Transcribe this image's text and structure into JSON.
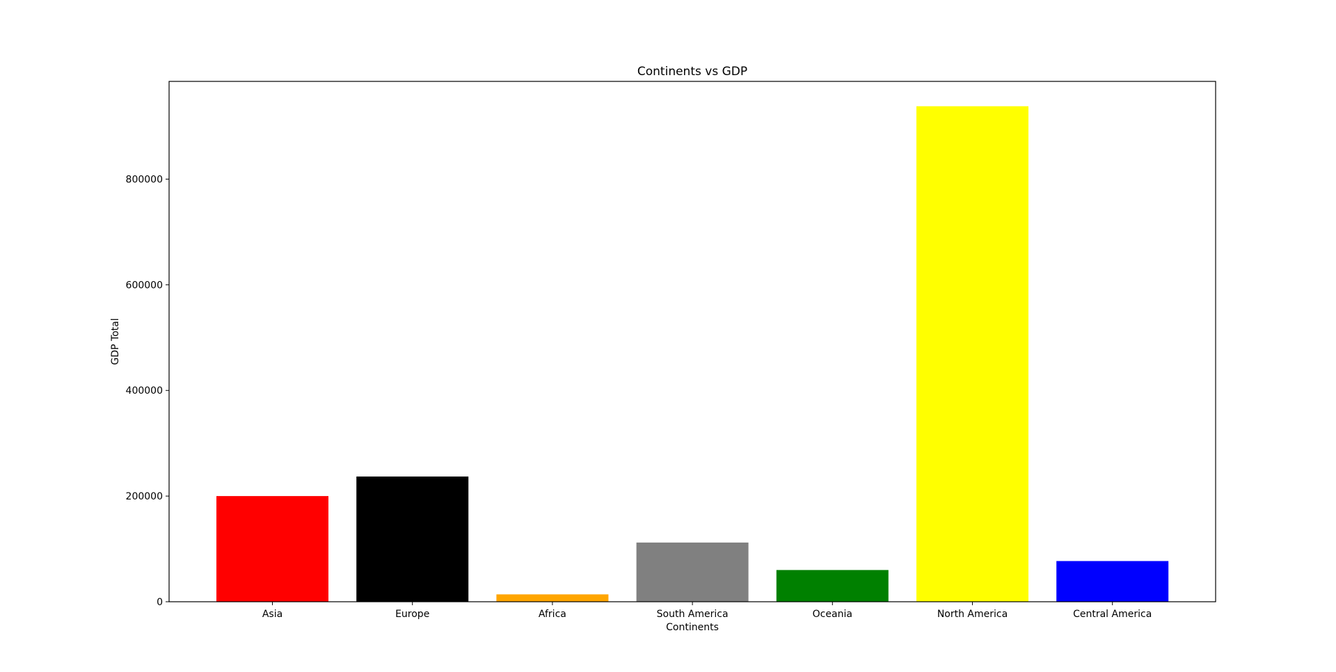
{
  "chart_data": {
    "type": "bar",
    "title": "Continents vs GDP",
    "xlabel": "Continents",
    "ylabel": "GDP Total",
    "categories": [
      "Asia",
      "Europe",
      "Africa",
      "South America",
      "Oceania",
      "North America",
      "Central America"
    ],
    "values": [
      200000,
      237000,
      14000,
      112000,
      60000,
      938000,
      77000
    ],
    "colors": [
      "#ff0000",
      "#000000",
      "#ffa500",
      "#808080",
      "#008000",
      "#ffff00",
      "#0000ff"
    ],
    "ylim": [
      0,
      985000
    ],
    "yticks": [
      0,
      200000,
      400000,
      600000,
      800000
    ],
    "ytick_labels": [
      "0",
      "200000",
      "400000",
      "600000",
      "800000"
    ],
    "grid": false,
    "legend": "none"
  }
}
